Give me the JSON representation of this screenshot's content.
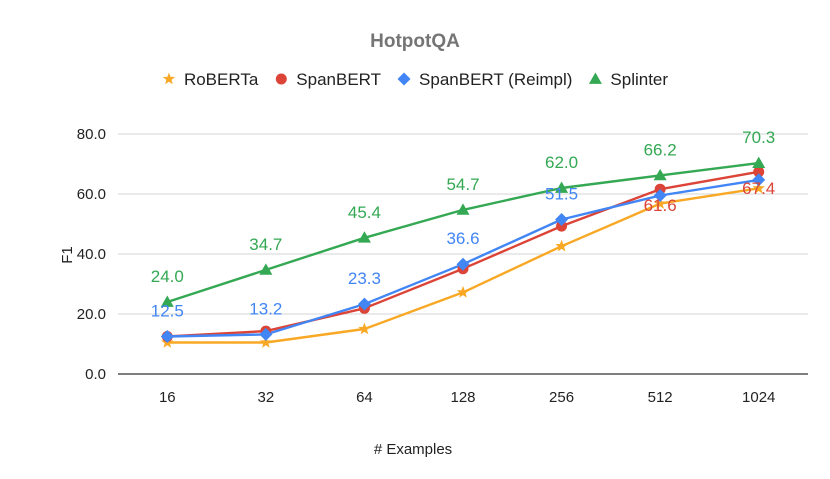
{
  "chart_data": {
    "type": "line",
    "title": "HotpotQA",
    "xlabel": "# Examples",
    "ylabel": "F1",
    "categories": [
      "16",
      "32",
      "64",
      "128",
      "256",
      "512",
      "1024"
    ],
    "ylim": [
      0,
      80
    ],
    "yticks": [
      "0.0",
      "20.0",
      "40.0",
      "60.0",
      "80.0"
    ],
    "grid": true,
    "legend_position": "top",
    "series": [
      {
        "name": "RoBERTa",
        "marker": "star",
        "color": "#F9A825",
        "values": [
          10.5,
          10.5,
          15.0,
          27.2,
          42.6,
          56.8,
          61.9
        ],
        "labels": [
          null,
          null,
          null,
          null,
          null,
          null,
          null
        ]
      },
      {
        "name": "SpanBERT",
        "marker": "circle",
        "color": "#DB4437",
        "values": [
          12.5,
          14.3,
          21.9,
          35.1,
          49.3,
          61.6,
          67.4
        ],
        "labels": [
          null,
          null,
          null,
          null,
          null,
          "61.6",
          "67.4"
        ]
      },
      {
        "name": "SpanBERT (Reimpl)",
        "marker": "diamond",
        "color": "#4285F4",
        "values": [
          12.5,
          13.2,
          23.3,
          36.6,
          51.5,
          59.5,
          64.7
        ],
        "labels": [
          "12.5",
          "13.2",
          "23.3",
          "36.6",
          "51.5",
          null,
          null
        ]
      },
      {
        "name": "Splinter",
        "marker": "triangle",
        "color": "#34A853",
        "values": [
          24.0,
          34.7,
          45.4,
          54.7,
          62.0,
          66.2,
          70.3
        ],
        "labels": [
          "24.0",
          "34.7",
          "45.4",
          "54.7",
          "62.0",
          "66.2",
          "70.3"
        ]
      }
    ]
  }
}
